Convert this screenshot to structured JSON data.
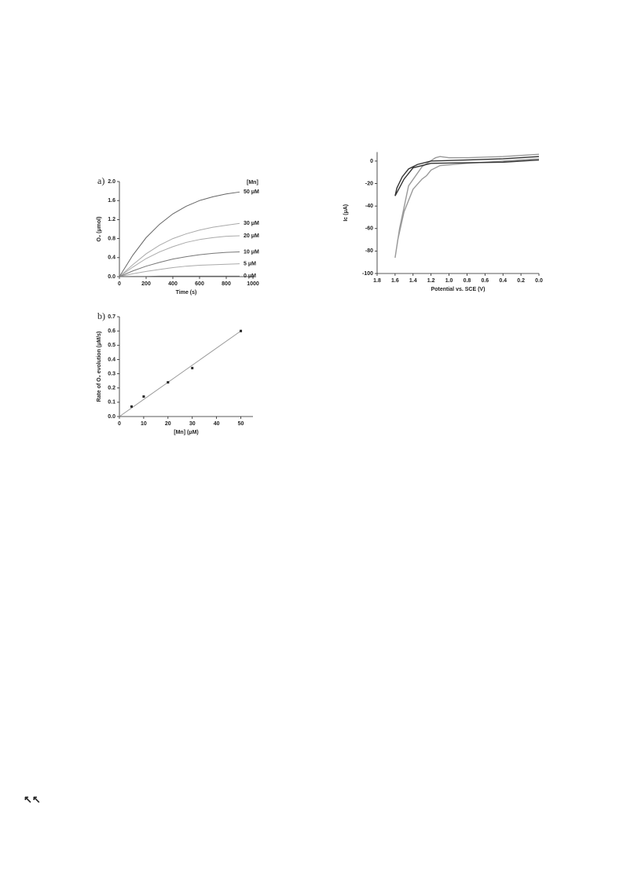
{
  "chart_data": [
    {
      "type": "line",
      "panel_label": "a)",
      "xlabel": "Time (s)",
      "ylabel": "O₂ (μmol)",
      "legend_title": "[Mn]",
      "x": [
        0,
        100,
        200,
        300,
        400,
        500,
        600,
        700,
        800,
        900
      ],
      "series": [
        {
          "name": "50 μM",
          "color": "#666666",
          "values": [
            0,
            0.45,
            0.82,
            1.1,
            1.32,
            1.48,
            1.6,
            1.68,
            1.74,
            1.78
          ]
        },
        {
          "name": "30 μM",
          "color": "#aaaaaa",
          "values": [
            0,
            0.25,
            0.48,
            0.66,
            0.8,
            0.9,
            0.98,
            1.04,
            1.08,
            1.12
          ]
        },
        {
          "name": "20 μM",
          "color": "#aaaaaa",
          "values": [
            0,
            0.2,
            0.38,
            0.52,
            0.63,
            0.72,
            0.78,
            0.82,
            0.85,
            0.86
          ]
        },
        {
          "name": "10 μM",
          "color": "#777777",
          "values": [
            0,
            0.12,
            0.22,
            0.3,
            0.37,
            0.42,
            0.46,
            0.49,
            0.51,
            0.52
          ]
        },
        {
          "name": "5 μM",
          "color": "#aaaaaa",
          "values": [
            0,
            0.06,
            0.11,
            0.15,
            0.19,
            0.22,
            0.24,
            0.25,
            0.26,
            0.27
          ]
        },
        {
          "name": "0 μM",
          "color": "#666666",
          "values": [
            0,
            0.005,
            0.005,
            0.01,
            0.01,
            0.01,
            0.01,
            0.01,
            0.01,
            0.01
          ]
        }
      ],
      "xlim": [
        0,
        1000
      ],
      "xticks": [
        0,
        200,
        400,
        600,
        800,
        1000
      ],
      "ylim": [
        0,
        2
      ],
      "yticks": [
        {
          "value": 0,
          "label": "0.0"
        },
        0.4,
        0.8,
        1.2,
        1.6,
        {
          "value": 2,
          "label": "2.0"
        }
      ]
    },
    {
      "type": "scatter",
      "panel_label": "b)",
      "xlabel": "[Mn] (μM)",
      "ylabel": "Rate of O₂ evolution (μM/s)",
      "x": [
        5,
        10,
        20,
        30,
        50
      ],
      "series": [
        {
          "color": "#222222",
          "values": [
            0.07,
            0.14,
            0.24,
            0.34,
            0.6
          ]
        }
      ],
      "fit": {
        "color": "#999999",
        "x": [
          0,
          50
        ],
        "values": [
          0,
          0.6
        ]
      },
      "xlim": [
        0,
        55
      ],
      "xticks": [
        0,
        10,
        20,
        30,
        40,
        50
      ],
      "ylim": [
        0,
        0.7
      ],
      "yticks": [
        {
          "value": 0,
          "label": "0.0"
        },
        0.1,
        0.2,
        0.3,
        0.4,
        0.5,
        0.6,
        0.7
      ]
    },
    {
      "type": "line",
      "xlabel": "Potential vs. SCE (V)",
      "ylabel": "Ic (μA)",
      "series": [
        {
          "color": "#999999",
          "x": [
            0,
            0.4,
            0.8,
            1.0,
            1.1,
            1.15,
            1.3,
            1.45,
            1.55,
            1.6,
            1.57,
            1.5,
            1.4,
            1.3,
            1.25,
            1.2,
            1.1,
            0.8,
            0.4,
            0
          ],
          "values": [
            6,
            4,
            3,
            3,
            4,
            3,
            -5,
            -22,
            -60,
            -86,
            -70,
            -45,
            -25,
            -16,
            -13,
            -8,
            -4,
            -2,
            0,
            2
          ]
        },
        {
          "color": "#333333",
          "x": [
            0,
            0.4,
            0.8,
            1.2,
            1.4,
            1.5,
            1.6,
            1.58,
            1.52,
            1.45,
            1.35,
            1.2,
            0.8,
            0.4,
            0
          ],
          "values": [
            1,
            -1,
            -1.5,
            -2,
            -6,
            -16,
            -31,
            -24,
            -14,
            -7,
            -3,
            0,
            1,
            2,
            4
          ]
        }
      ],
      "xlim": [
        1.8,
        0
      ],
      "xticks": [
        1.8,
        1.6,
        1.4,
        1.2,
        {
          "value": 1,
          "label": "1.0"
        },
        0.8,
        0.6,
        0.4,
        0.2,
        {
          "value": 0,
          "label": "0.0"
        }
      ],
      "ylim": [
        -100,
        8
      ],
      "yticks": [
        0,
        -20,
        -40,
        -60,
        -80,
        -100
      ]
    }
  ],
  "footer_mark": "↖↖"
}
